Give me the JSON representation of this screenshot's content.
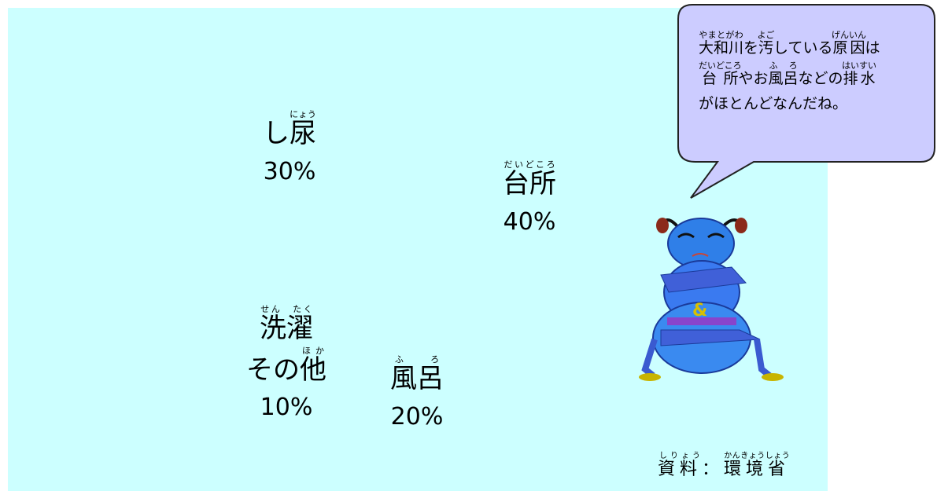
{
  "chart_data": {
    "type": "pie",
    "labels": [
      [
        [
          {
            "text": "台所",
            "ruby": "だいどころ"
          }
        ]
      ],
      [
        [
          {
            "text": "風呂",
            "ruby": "ふ　ろ"
          }
        ]
      ],
      [
        [
          {
            "text": "洗濯",
            "ruby": "せん　たく"
          }
        ],
        [
          {
            "text": "その"
          },
          {
            "text": "他",
            "ruby": "ほか"
          }
        ]
      ],
      [
        [
          {
            "text": "し"
          },
          {
            "text": "尿",
            "ruby": "にょう"
          }
        ]
      ]
    ],
    "values": [
      40,
      20,
      10,
      30
    ],
    "value_labels": [
      "40%",
      "20%",
      "10%",
      "30%"
    ],
    "colors": [
      "#66ff99",
      "#ffff66",
      "#ff99ff",
      "#3399ff"
    ],
    "exploded": [
      false,
      false,
      false,
      true
    ],
    "source": [
      {
        "text": "資料",
        "ruby": "しりょう"
      },
      {
        "text": "："
      },
      {
        "text": "環境省",
        "ruby": "かんきょうしょう"
      }
    ]
  },
  "speech": [
    [
      {
        "text": "大和川",
        "ruby": "やまとがわ"
      },
      {
        "text": "を"
      },
      {
        "text": "汚",
        "ruby": "よご"
      },
      {
        "text": "している"
      },
      {
        "text": "原因",
        "ruby": "げんいん"
      },
      {
        "text": "は"
      }
    ],
    [
      {
        "text": "台所",
        "ruby": "だいどころ"
      },
      {
        "text": "やお"
      },
      {
        "text": "風呂",
        "ruby": "ふ　ろ"
      },
      {
        "text": "などの"
      },
      {
        "text": "排水",
        "ruby": "はいすい"
      }
    ],
    [
      {
        "text": "がほとんどなんだね。"
      }
    ]
  ]
}
